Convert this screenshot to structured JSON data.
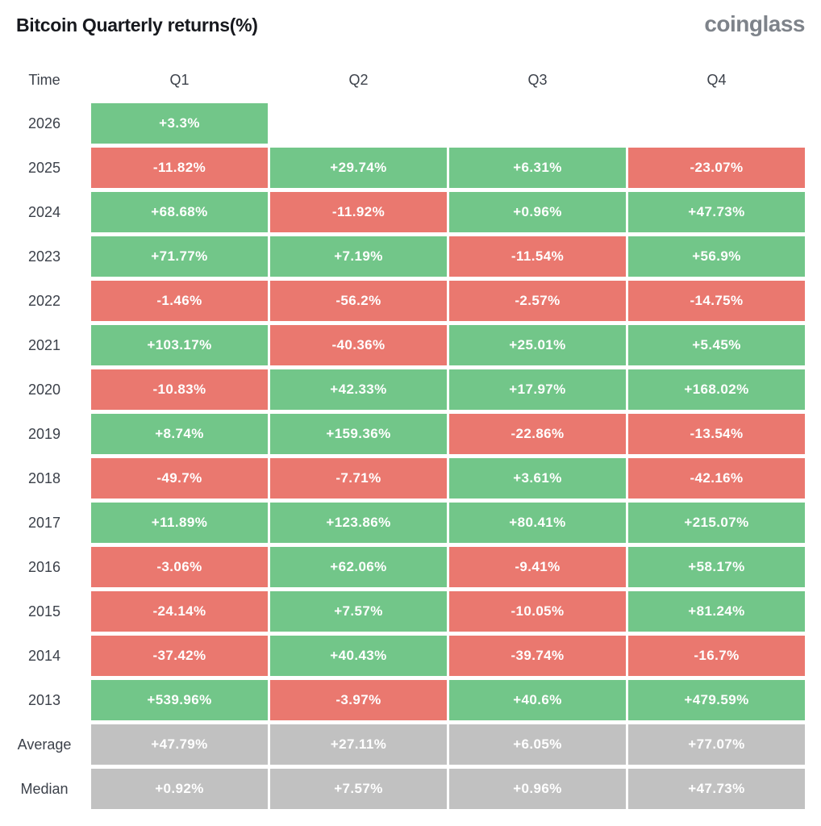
{
  "header": {
    "title": "Bitcoin Quarterly returns(%)",
    "logo": "coinglass"
  },
  "colors": {
    "positive": "#72c689",
    "negative": "#ea786f",
    "neutral": "#c1c1c1",
    "cell_text": "#ffffff",
    "label_text": "#3c414a",
    "title_text": "#17191e",
    "logo_text": "#7e838a"
  },
  "chart_data": {
    "type": "table",
    "title": "Bitcoin Quarterly returns(%)",
    "columns": [
      "Time",
      "Q1",
      "Q2",
      "Q3",
      "Q4"
    ],
    "rows": [
      {
        "label": "2026",
        "cells": [
          {
            "value": "+3.3%",
            "color": "positive"
          },
          null,
          null,
          null
        ]
      },
      {
        "label": "2025",
        "cells": [
          {
            "value": "-11.82%",
            "color": "negative"
          },
          {
            "value": "+29.74%",
            "color": "positive"
          },
          {
            "value": "+6.31%",
            "color": "positive"
          },
          {
            "value": "-23.07%",
            "color": "negative"
          }
        ]
      },
      {
        "label": "2024",
        "cells": [
          {
            "value": "+68.68%",
            "color": "positive"
          },
          {
            "value": "-11.92%",
            "color": "negative"
          },
          {
            "value": "+0.96%",
            "color": "positive"
          },
          {
            "value": "+47.73%",
            "color": "positive"
          }
        ]
      },
      {
        "label": "2023",
        "cells": [
          {
            "value": "+71.77%",
            "color": "positive"
          },
          {
            "value": "+7.19%",
            "color": "positive"
          },
          {
            "value": "-11.54%",
            "color": "negative"
          },
          {
            "value": "+56.9%",
            "color": "positive"
          }
        ]
      },
      {
        "label": "2022",
        "cells": [
          {
            "value": "-1.46%",
            "color": "negative"
          },
          {
            "value": "-56.2%",
            "color": "negative"
          },
          {
            "value": "-2.57%",
            "color": "negative"
          },
          {
            "value": "-14.75%",
            "color": "negative"
          }
        ]
      },
      {
        "label": "2021",
        "cells": [
          {
            "value": "+103.17%",
            "color": "positive"
          },
          {
            "value": "-40.36%",
            "color": "negative"
          },
          {
            "value": "+25.01%",
            "color": "positive"
          },
          {
            "value": "+5.45%",
            "color": "positive"
          }
        ]
      },
      {
        "label": "2020",
        "cells": [
          {
            "value": "-10.83%",
            "color": "negative"
          },
          {
            "value": "+42.33%",
            "color": "positive"
          },
          {
            "value": "+17.97%",
            "color": "positive"
          },
          {
            "value": "+168.02%",
            "color": "positive"
          }
        ]
      },
      {
        "label": "2019",
        "cells": [
          {
            "value": "+8.74%",
            "color": "positive"
          },
          {
            "value": "+159.36%",
            "color": "positive"
          },
          {
            "value": "-22.86%",
            "color": "negative"
          },
          {
            "value": "-13.54%",
            "color": "negative"
          }
        ]
      },
      {
        "label": "2018",
        "cells": [
          {
            "value": "-49.7%",
            "color": "negative"
          },
          {
            "value": "-7.71%",
            "color": "negative"
          },
          {
            "value": "+3.61%",
            "color": "positive"
          },
          {
            "value": "-42.16%",
            "color": "negative"
          }
        ]
      },
      {
        "label": "2017",
        "cells": [
          {
            "value": "+11.89%",
            "color": "positive"
          },
          {
            "value": "+123.86%",
            "color": "positive"
          },
          {
            "value": "+80.41%",
            "color": "positive"
          },
          {
            "value": "+215.07%",
            "color": "positive"
          }
        ]
      },
      {
        "label": "2016",
        "cells": [
          {
            "value": "-3.06%",
            "color": "negative"
          },
          {
            "value": "+62.06%",
            "color": "positive"
          },
          {
            "value": "-9.41%",
            "color": "negative"
          },
          {
            "value": "+58.17%",
            "color": "positive"
          }
        ]
      },
      {
        "label": "2015",
        "cells": [
          {
            "value": "-24.14%",
            "color": "negative"
          },
          {
            "value": "+7.57%",
            "color": "positive"
          },
          {
            "value": "-10.05%",
            "color": "negative"
          },
          {
            "value": "+81.24%",
            "color": "positive"
          }
        ]
      },
      {
        "label": "2014",
        "cells": [
          {
            "value": "-37.42%",
            "color": "negative"
          },
          {
            "value": "+40.43%",
            "color": "positive"
          },
          {
            "value": "-39.74%",
            "color": "negative"
          },
          {
            "value": "-16.7%",
            "color": "negative"
          }
        ]
      },
      {
        "label": "2013",
        "cells": [
          {
            "value": "+539.96%",
            "color": "positive"
          },
          {
            "value": "-3.97%",
            "color": "negative"
          },
          {
            "value": "+40.6%",
            "color": "positive"
          },
          {
            "value": "+479.59%",
            "color": "positive"
          }
        ]
      },
      {
        "label": "Average",
        "cells": [
          {
            "value": "+47.79%",
            "color": "neutral"
          },
          {
            "value": "+27.11%",
            "color": "neutral"
          },
          {
            "value": "+6.05%",
            "color": "neutral"
          },
          {
            "value": "+77.07%",
            "color": "neutral"
          }
        ]
      },
      {
        "label": "Median",
        "cells": [
          {
            "value": "+0.92%",
            "color": "neutral"
          },
          {
            "value": "+7.57%",
            "color": "neutral"
          },
          {
            "value": "+0.96%",
            "color": "neutral"
          },
          {
            "value": "+47.73%",
            "color": "neutral"
          }
        ]
      }
    ]
  }
}
